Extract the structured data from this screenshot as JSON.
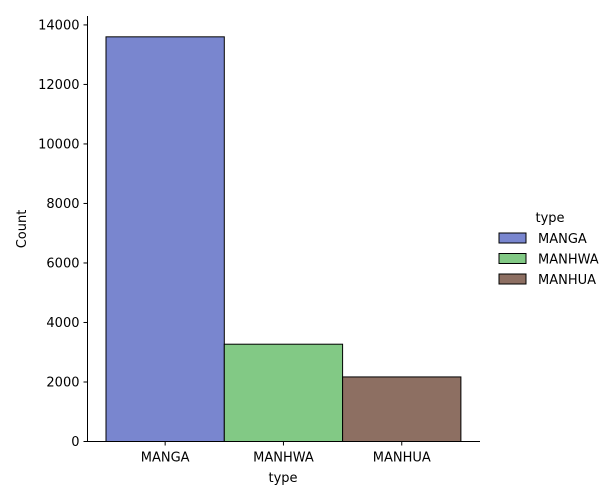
{
  "chart_data": {
    "type": "bar",
    "categories": [
      "MANGA",
      "MANHWA",
      "MANHUA"
    ],
    "values": [
      13600,
      3270,
      2170
    ],
    "colors": [
      "#7986cf",
      "#82c985",
      "#8d6f62"
    ],
    "xlabel": "type",
    "ylabel": "Count",
    "ylim": [
      0,
      14300
    ],
    "yticks": [
      0,
      2000,
      4000,
      6000,
      8000,
      10000,
      12000,
      14000
    ],
    "grid": false,
    "legend": {
      "title": "type",
      "placement": "right",
      "entries": [
        "MANGA",
        "MANHWA",
        "MANHUA"
      ]
    }
  }
}
